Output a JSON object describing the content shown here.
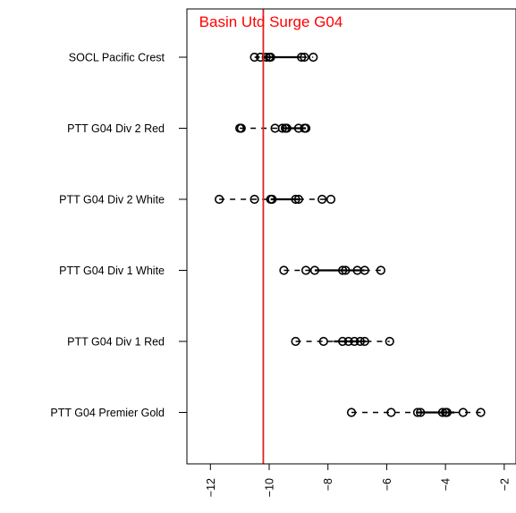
{
  "chart_data": {
    "type": "boxplot",
    "title": "Basin Utd Surge G04",
    "orientation": "horizontal",
    "categories": [
      "SOCL Pacific Crest",
      "PTT G04 Div 2 Red",
      "PTT G04 Div 2 White",
      "PTT G04 Div 1 White",
      "PTT G04 Div 1 Red",
      "PTT G04 Premier Gold"
    ],
    "series": [
      {
        "category": "SOCL Pacific Crest",
        "points": [
          -10.5,
          -10.3,
          -10.1,
          -10.0,
          -9.95,
          -8.9,
          -8.8,
          -8.5
        ],
        "q1": -10.2,
        "q3": -8.9,
        "whisker_low": -10.5,
        "whisker_high": -8.5
      },
      {
        "category": "PTT G04 Div 2 Red",
        "points": [
          -11.0,
          -10.95,
          -9.8,
          -9.55,
          -9.45,
          -9.4,
          -9.0,
          -8.8,
          -8.75
        ],
        "q1": -9.6,
        "q3": -8.75,
        "whisker_low": -11.0,
        "whisker_high": -8.75
      },
      {
        "category": "PTT G04 Div 2 White",
        "points": [
          -11.7,
          -10.5,
          -9.95,
          -9.9,
          -9.1,
          -9.0,
          -8.2,
          -7.9
        ],
        "q1": -9.95,
        "q3": -9.0,
        "whisker_low": -11.7,
        "whisker_high": -7.9
      },
      {
        "category": "PTT G04 Div 1 White",
        "points": [
          -9.5,
          -8.75,
          -8.45,
          -7.5,
          -7.4,
          -7.0,
          -6.75,
          -6.2
        ],
        "q1": -8.45,
        "q3": -6.75,
        "whisker_low": -9.5,
        "whisker_high": -6.2
      },
      {
        "category": "PTT G04 Div 1 Red",
        "points": [
          -9.1,
          -8.15,
          -7.5,
          -7.3,
          -7.1,
          -6.9,
          -6.75,
          -5.9
        ],
        "q1": -7.8,
        "q3": -6.7,
        "whisker_low": -9.1,
        "whisker_high": -5.9
      },
      {
        "category": "PTT G04 Premier Gold",
        "points": [
          -7.2,
          -5.85,
          -4.95,
          -4.85,
          -4.1,
          -4.0,
          -3.95,
          -3.4,
          -2.8
        ],
        "q1": -4.95,
        "q3": -3.7,
        "whisker_low": -7.2,
        "whisker_high": -2.8
      }
    ],
    "reference_line": {
      "value": -10.2,
      "color": "#dd2222"
    },
    "xticks": [
      -12,
      -10,
      -8,
      -6,
      -4,
      -2
    ],
    "xtick_labels": [
      "−12",
      "−10",
      "−8",
      "−6",
      "−4",
      "−2"
    ],
    "xlim": [
      -12.8,
      -1.6
    ],
    "xlabel": "",
    "ylabel": "",
    "grid": false,
    "colors": {
      "title": "#ff0000",
      "reference_line": "#dd2222",
      "marks": "#000000"
    }
  }
}
